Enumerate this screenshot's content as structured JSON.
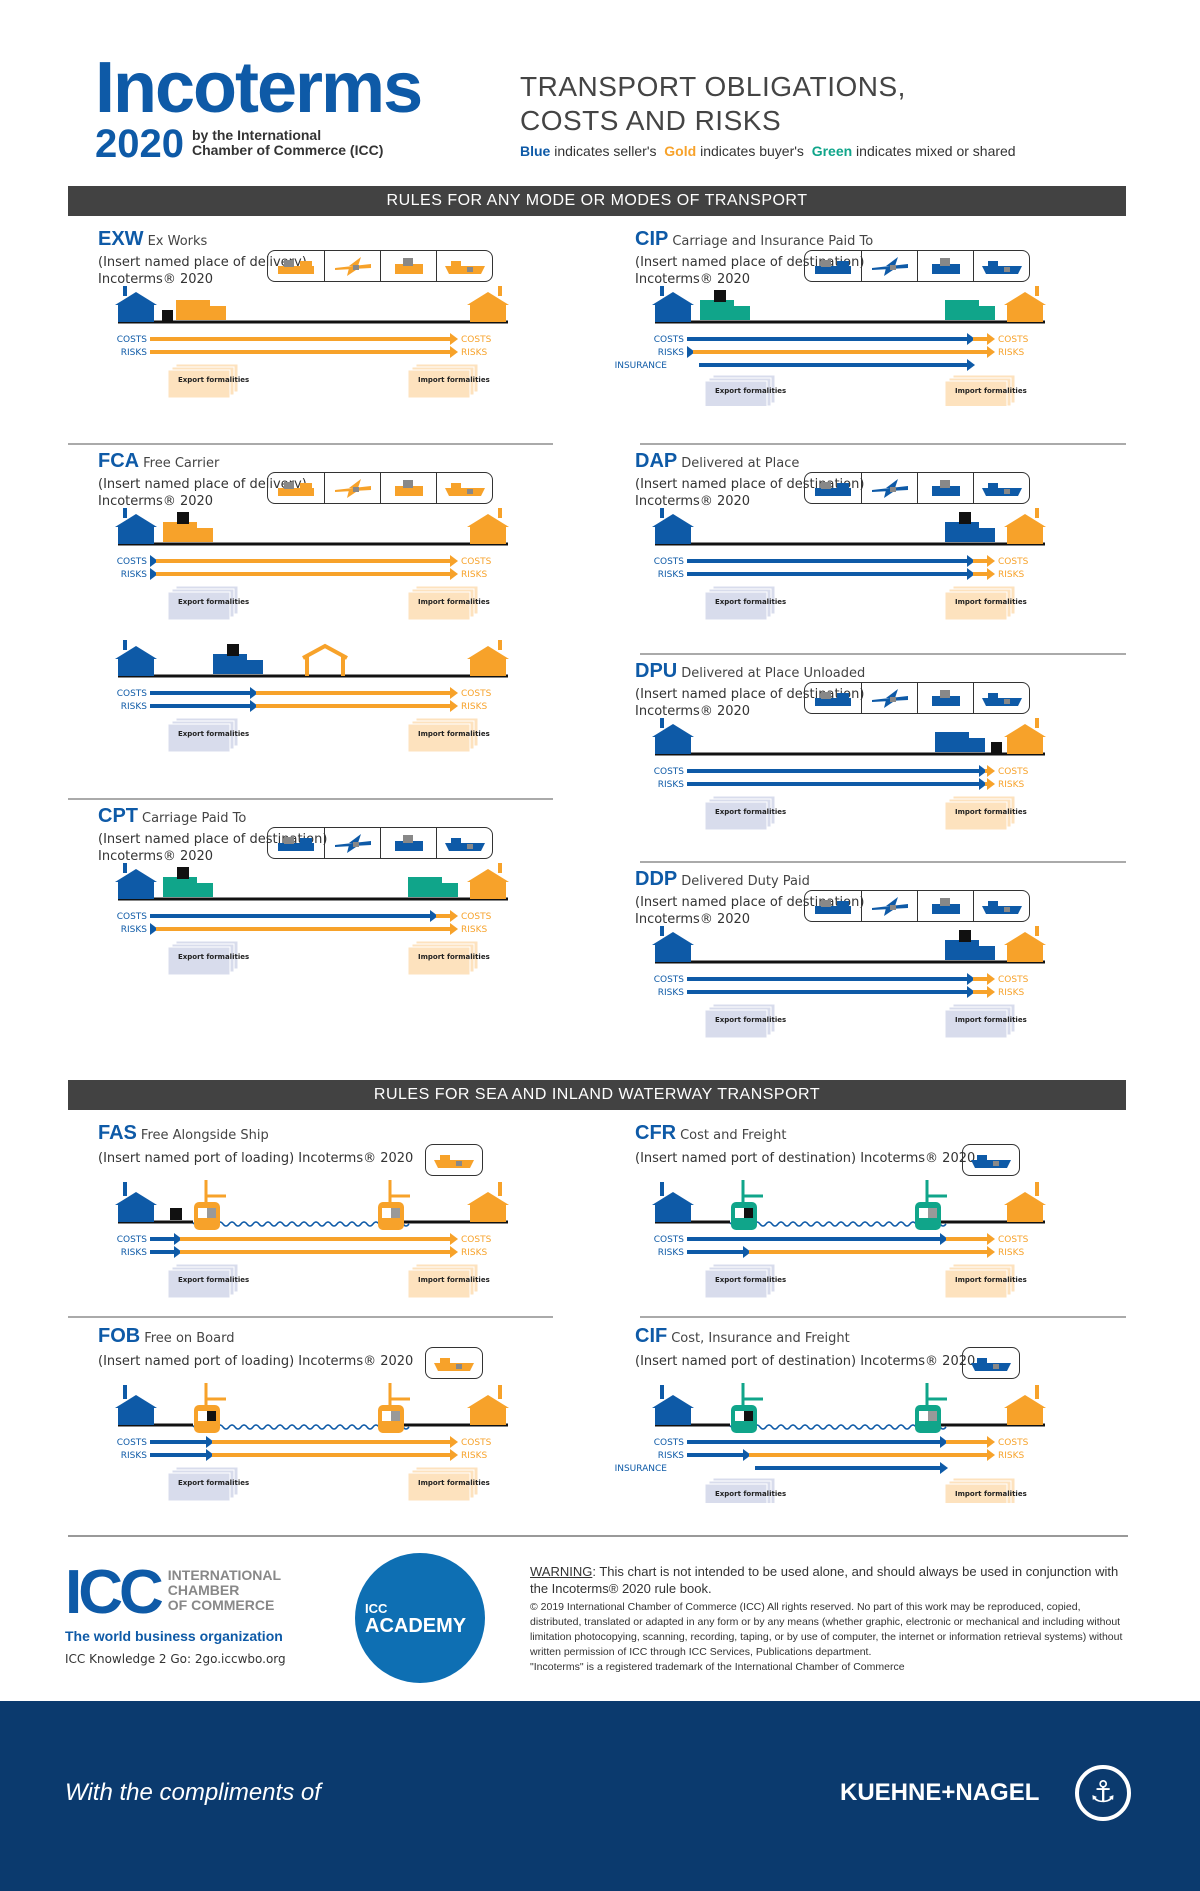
{
  "header": {
    "logo_word": "Incoterms",
    "logo_year": "2020",
    "logo_by_1": "by the International",
    "logo_by_2": "Chamber of Commerce (ICC)",
    "title_1": "TRANSPORT OBLIGATIONS,",
    "title_2": "COSTS AND RISKS",
    "legend": {
      "blue": "Blue",
      "blue_text": " indicates seller's  ",
      "gold": "Gold",
      "gold_text": " indicates buyer's  ",
      "green": "Green",
      "green_text": " indicates mixed or shared"
    }
  },
  "colors": {
    "seller": "#0e5aa7",
    "buyer": "#f7a22a",
    "shared": "#10a58a",
    "band": "#424242",
    "footer": "#0b3a6e",
    "export_doc": "#d8dcec",
    "import_doc": "#fde2be"
  },
  "labels": {
    "costs": "COSTS",
    "risks": "RISKS",
    "insurance": "INSURANCE",
    "export": "Export formalities",
    "import": "Import formalities"
  },
  "sections": {
    "any_mode": "RULES FOR ANY MODE OR MODES OF TRANSPORT",
    "sea": "RULES FOR SEA AND INLAND WATERWAY TRANSPORT"
  },
  "rules": [
    {
      "code": "EXW",
      "name": "Ex Works",
      "place": "(Insert named place of delivery) Incoterms® 2020",
      "modes": "buyer",
      "mode_icons": [
        "ship-truck-icon",
        "plane-icon",
        "truck-icon",
        "ship-icon"
      ],
      "diagrams": [
        {
          "kind": "land",
          "vehicles": [
            {
              "type": "truck",
              "party": "buyer",
              "at": "seller"
            }
          ],
          "cargo": "seller",
          "costs": "seller",
          "risks": "seller",
          "export": "buyer",
          "import": "buyer"
        }
      ]
    },
    {
      "code": "FCA",
      "name": "Free Carrier",
      "place": "(Insert named place of delivery) Incoterms® 2020",
      "modes": "buyer",
      "mode_icons": [
        "ship-truck-icon",
        "plane-icon",
        "truck-icon",
        "ship-icon"
      ],
      "diagrams": [
        {
          "kind": "land",
          "vehicles": [
            {
              "type": "truck",
              "party": "buyer",
              "at": "carrier",
              "cargo": true
            }
          ],
          "costs": "carrier",
          "risks": "carrier",
          "export": "seller",
          "import": "buyer"
        },
        {
          "kind": "land",
          "vehicles": [
            {
              "type": "truck",
              "party": "seller",
              "at": "named_place",
              "cargo": true
            },
            {
              "type": "shed",
              "party": "buyer",
              "at": "named_place"
            }
          ],
          "costs": "named_place",
          "risks": "named_place",
          "export": "seller",
          "import": "buyer"
        }
      ]
    },
    {
      "code": "CPT",
      "name": "Carriage Paid To",
      "place": "(Insert named place of destination) Incoterms® 2020",
      "modes": "seller",
      "mode_icons": [
        "ship-truck-icon",
        "plane-icon",
        "truck-icon",
        "ship-icon"
      ],
      "diagrams": [
        {
          "kind": "land",
          "vehicles": [
            {
              "type": "truck",
              "party": "shared",
              "at": "carrier",
              "cargo": true
            },
            {
              "type": "truck",
              "party": "shared",
              "at": "destination"
            }
          ],
          "costs": "destination",
          "risks": "carrier",
          "export": "seller",
          "import": "buyer"
        }
      ]
    },
    {
      "code": "CIP",
      "name": "Carriage and Insurance Paid To",
      "place": "(Insert named place of destination) Incoterms® 2020",
      "modes": "seller",
      "mode_icons": [
        "ship-truck-icon",
        "plane-icon",
        "truck-icon",
        "ship-icon"
      ],
      "diagrams": [
        {
          "kind": "land",
          "vehicles": [
            {
              "type": "truck",
              "party": "shared",
              "at": "carrier",
              "cargo": true
            },
            {
              "type": "truck",
              "party": "shared",
              "at": "destination"
            }
          ],
          "costs": "destination",
          "risks": "carrier",
          "insurance": [
            "carrier",
            "destination"
          ],
          "export": "seller",
          "import": "buyer"
        }
      ]
    },
    {
      "code": "DAP",
      "name": "Delivered at Place",
      "place": "(Insert named place of destination) Incoterms® 2020",
      "modes": "seller",
      "mode_icons": [
        "ship-truck-icon",
        "plane-icon",
        "truck-icon",
        "ship-icon"
      ],
      "diagrams": [
        {
          "kind": "land",
          "vehicles": [
            {
              "type": "truck",
              "party": "seller",
              "at": "destination",
              "cargo": true
            }
          ],
          "costs": "destination",
          "risks": "destination",
          "export": "seller",
          "import": "buyer"
        }
      ]
    },
    {
      "code": "DPU",
      "name": "Delivered at Place Unloaded",
      "place": "(Insert named place of destination) Incoterms® 2020",
      "modes": "seller",
      "mode_icons": [
        "ship-truck-icon",
        "plane-icon",
        "truck-icon",
        "ship-icon"
      ],
      "diagrams": [
        {
          "kind": "land",
          "vehicles": [
            {
              "type": "truck",
              "party": "seller",
              "at": "unloaded"
            }
          ],
          "cargo": "unloaded",
          "costs": "unloaded",
          "risks": "unloaded",
          "export": "seller",
          "import": "buyer"
        }
      ]
    },
    {
      "code": "DDP",
      "name": "Delivered Duty Paid",
      "place": "(Insert named place of destination) Incoterms® 2020",
      "modes": "seller",
      "mode_icons": [
        "ship-truck-icon",
        "plane-icon",
        "truck-icon",
        "ship-icon"
      ],
      "diagrams": [
        {
          "kind": "land",
          "vehicles": [
            {
              "type": "truck",
              "party": "seller",
              "at": "destination",
              "cargo": true
            }
          ],
          "costs": "destination",
          "risks": "destination",
          "export": "seller",
          "import": "seller"
        }
      ]
    },
    {
      "code": "FAS",
      "name": "Free Alongside Ship",
      "place": "(Insert named port of loading) Incoterms® 2020",
      "modes": "buyer",
      "mode_icons": [
        "ship-icon"
      ],
      "diagrams": [
        {
          "kind": "sea",
          "ship_party": "buyer",
          "cargo": "quay",
          "costs": "quay",
          "risks": "quay",
          "export": "seller",
          "import": "buyer"
        }
      ]
    },
    {
      "code": "FOB",
      "name": "Free on Board",
      "place": "(Insert named port of loading) Incoterms® 2020",
      "modes": "buyer",
      "mode_icons": [
        "ship-icon"
      ],
      "diagrams": [
        {
          "kind": "sea",
          "ship_party": "buyer",
          "cargo": "on_board",
          "costs": "on_board",
          "risks": "on_board",
          "export": "seller",
          "import": "buyer"
        }
      ]
    },
    {
      "code": "CFR",
      "name": "Cost and Freight",
      "place": "(Insert named port of destination) Incoterms® 2020",
      "modes": "seller",
      "mode_icons": [
        "ship-icon"
      ],
      "diagrams": [
        {
          "kind": "sea",
          "ship_party": "shared",
          "cargo": "on_board",
          "costs": "dest_port",
          "risks": "on_board",
          "export": "seller",
          "import": "buyer"
        }
      ]
    },
    {
      "code": "CIF",
      "name": "Cost, Insurance and Freight",
      "place": "(Insert named port of destination) Incoterms® 2020",
      "modes": "seller",
      "mode_icons": [
        "ship-icon"
      ],
      "diagrams": [
        {
          "kind": "sea",
          "ship_party": "shared",
          "cargo": "on_board",
          "costs": "dest_port",
          "risks": "on_board",
          "insurance": [
            "on_board",
            "dest_port"
          ],
          "export": "seller",
          "import": "buyer"
        }
      ]
    }
  ],
  "footer": {
    "icc_letters": "ICC",
    "icc_words": [
      "INTERNATIONAL",
      "CHAMBER",
      "OF COMMERCE"
    ],
    "icc_tag": "The world business organization",
    "k2g": "ICC Knowledge 2 Go: 2go.iccwbo.org",
    "academy_1": "ICC",
    "academy_2": "ACADEMY",
    "warning_label": "WARNING",
    "warning_text": ": This chart is not intended to be used alone, and should always be used in conjunction with the Incoterms® 2020 rule book.",
    "copyright": "© 2019 International Chamber of Commerce (ICC) All rights reserved. No part of this work may be reproduced, copied, distributed, translated or adapted in any form or by any means (whether graphic, electronic or mechanical and including without limitation photocopying, scanning, recording, taping, or by use of computer, the internet or information retrieval systems) without written permission of ICC through ICC Services, Publications department.",
    "trademark": "\"Incoterms\" is a registered trademark of the International Chamber of Commerce",
    "compliments": "With the compliments of",
    "sponsor": "KUEHNE+NAGEL"
  }
}
